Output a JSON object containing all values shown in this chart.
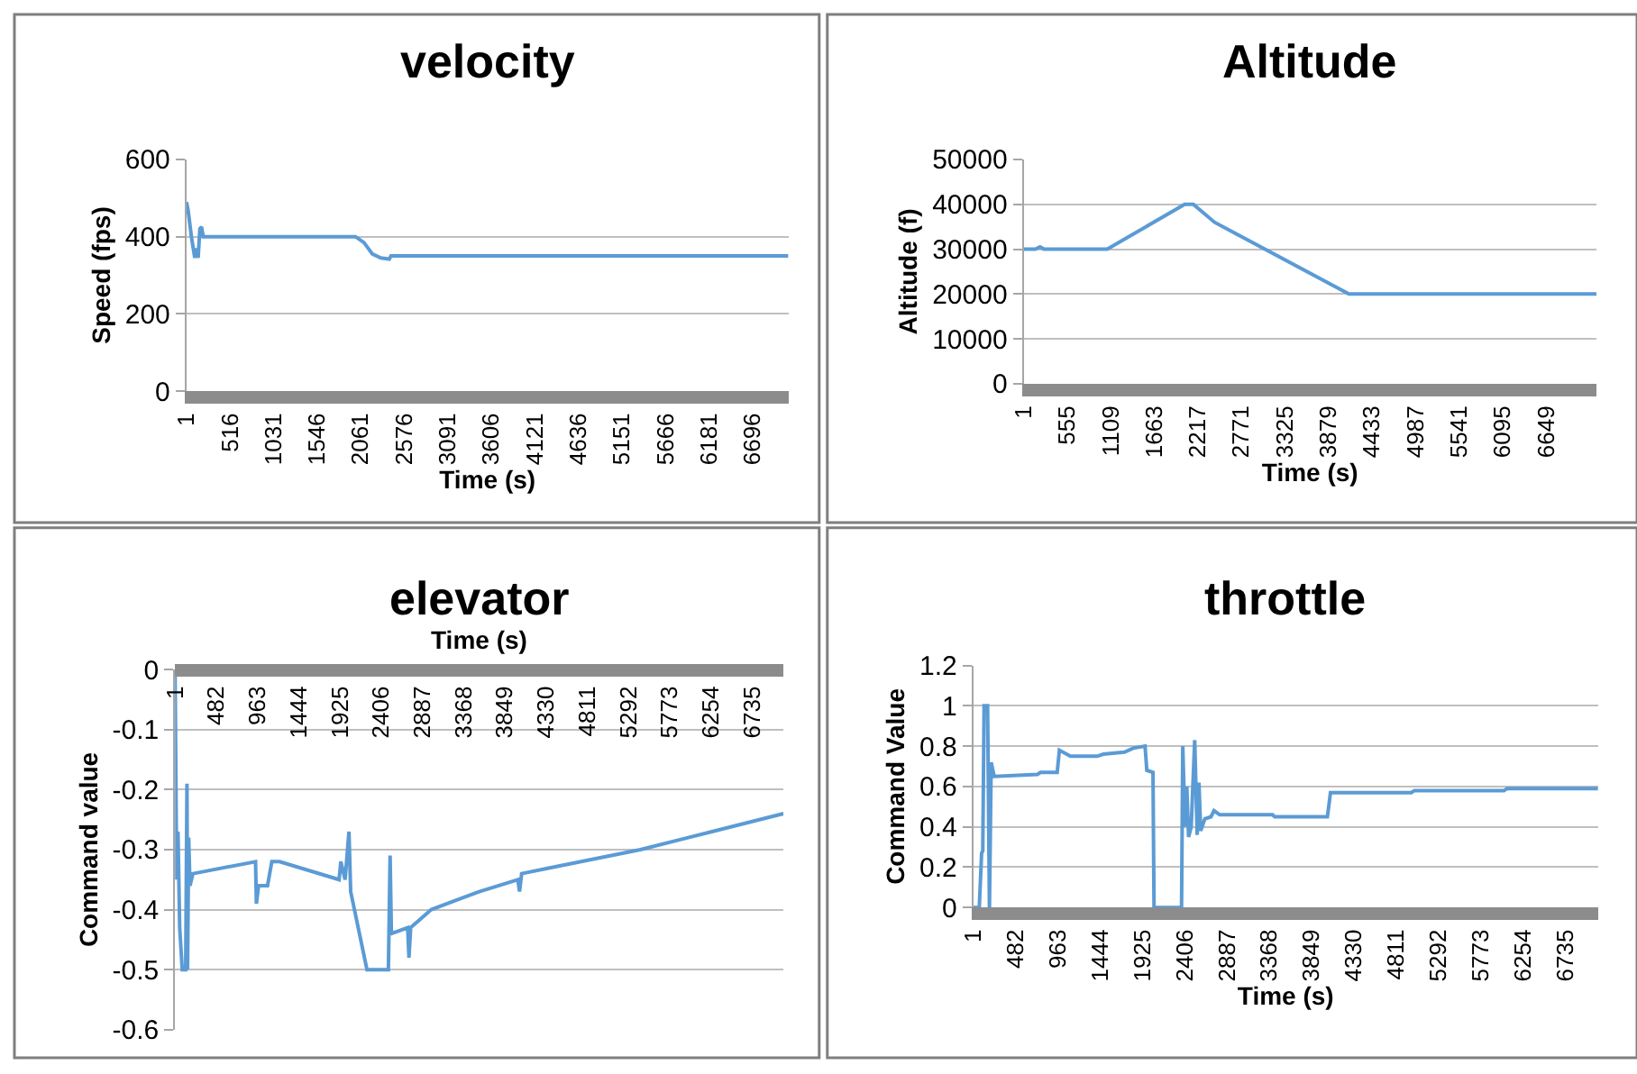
{
  "chart_data": [
    {
      "type": "line",
      "title": "velocity",
      "xlabel": "Time (s)",
      "ylabel": "Speed (fps)",
      "grid": "y",
      "color": "#5b9bd5",
      "x": [
        1,
        20,
        60,
        100,
        120,
        140,
        160,
        180,
        200,
        2000,
        2100,
        2200,
        2300,
        2400,
        2420,
        7120
      ],
      "values": [
        490,
        470,
        400,
        345,
        370,
        345,
        420,
        425,
        400,
        400,
        385,
        355,
        345,
        342,
        350,
        350
      ],
      "xlim": [
        1,
        7120
      ],
      "xticks": [
        1,
        516,
        1031,
        1546,
        2061,
        2576,
        3091,
        3606,
        4121,
        4636,
        5151,
        5666,
        6181,
        6696
      ],
      "ylim": [
        0,
        600
      ],
      "yticks": [
        0,
        200,
        400,
        600
      ]
    },
    {
      "type": "line",
      "title": "Altitude",
      "xlabel": "Time (s)",
      "ylabel": "Altitude (f)",
      "grid": "y",
      "color": "#5b9bd5",
      "x": [
        1,
        150,
        210,
        260,
        1065,
        2050,
        2160,
        2430,
        4140,
        7290
      ],
      "values": [
        30000,
        30000,
        30500,
        30000,
        30000,
        40000,
        40000,
        36000,
        20000,
        20000
      ],
      "xlim": [
        1,
        7290
      ],
      "xticks": [
        1,
        555,
        1109,
        1663,
        2217,
        2771,
        3325,
        3879,
        4433,
        4987,
        5541,
        6095,
        6649
      ],
      "ylim": [
        0,
        50000
      ],
      "yticks": [
        0,
        10000,
        20000,
        30000,
        40000,
        50000
      ]
    },
    {
      "type": "line",
      "title": "elevator",
      "xlabel": "Time (s)",
      "ylabel": "Command value",
      "grid": "y",
      "color": "#5b9bd5",
      "x": [
        1,
        20,
        35,
        55,
        85,
        125,
        140,
        147,
        160,
        175,
        210,
        940,
        950,
        975,
        1080,
        1130,
        1220,
        1915,
        1935,
        1985,
        2030,
        2050,
        2240,
        2490,
        2510,
        2525,
        2715,
        2730,
        2750,
        2990,
        3550,
        4000,
        4020,
        4045,
        4385,
        5430,
        6265,
        7100
      ],
      "values": [
        0,
        -0.35,
        -0.27,
        -0.43,
        -0.5,
        -0.5,
        -0.19,
        -0.5,
        -0.28,
        -0.36,
        -0.34,
        -0.32,
        -0.39,
        -0.36,
        -0.36,
        -0.32,
        -0.32,
        -0.35,
        -0.32,
        -0.35,
        -0.27,
        -0.37,
        -0.5,
        -0.5,
        -0.31,
        -0.44,
        -0.43,
        -0.48,
        -0.43,
        -0.4,
        -0.37,
        -0.35,
        -0.37,
        -0.34,
        -0.33,
        -0.3,
        -0.27,
        -0.24
      ],
      "xlim": [
        1,
        7100
      ],
      "xticks": [
        1,
        482,
        963,
        1444,
        1925,
        2406,
        2887,
        3368,
        3849,
        4330,
        4811,
        5292,
        5773,
        6254,
        6735
      ],
      "ylim": [
        -0.6,
        0
      ],
      "yticks": [
        -0.6,
        -0.5,
        -0.4,
        -0.3,
        -0.2,
        -0.1,
        0
      ]
    },
    {
      "type": "line",
      "title": "throttle",
      "xlabel": "Time (s)",
      "ylabel": "Command Value",
      "grid": "y",
      "color": "#5b9bd5",
      "x": [
        1,
        68,
        95,
        108,
        123,
        163,
        184,
        204,
        238,
        730,
        765,
        955,
        980,
        1105,
        1410,
        1480,
        1720,
        1820,
        1955,
        1975,
        2045,
        2057,
        2370,
        2384,
        2410,
        2430,
        2450,
        2480,
        2520,
        2548,
        2568,
        2588,
        2635,
        2705,
        2740,
        2805,
        3405,
        3430,
        4030,
        4065,
        4985,
        5020,
        6040,
        6075,
        7110
      ],
      "values": [
        0,
        0,
        0.27,
        0.28,
        1.0,
        1.0,
        0,
        0.72,
        0.65,
        0.66,
        0.67,
        0.67,
        0.78,
        0.75,
        0.75,
        0.76,
        0.77,
        0.79,
        0.8,
        0.68,
        0.67,
        0,
        0,
        0.8,
        0.4,
        0.6,
        0.35,
        0.4,
        0.83,
        0.36,
        0.62,
        0.38,
        0.44,
        0.45,
        0.48,
        0.46,
        0.46,
        0.45,
        0.45,
        0.57,
        0.57,
        0.58,
        0.58,
        0.59,
        0.59
      ],
      "xlim": [
        1,
        7110
      ],
      "xticks": [
        1,
        482,
        963,
        1444,
        1925,
        2406,
        2887,
        3368,
        3849,
        4330,
        4811,
        5292,
        5773,
        6254,
        6735
      ],
      "ylim": [
        0,
        1.2
      ],
      "yticks": [
        0,
        0.2,
        0.4,
        0.6,
        0.8,
        1,
        1.2
      ]
    }
  ]
}
